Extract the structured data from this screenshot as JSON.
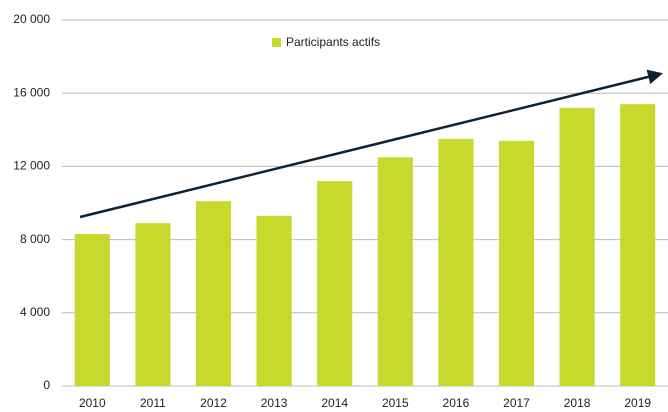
{
  "chart_data": {
    "type": "bar",
    "categories": [
      "2010",
      "2011",
      "2012",
      "2013",
      "2014",
      "2015",
      "2016",
      "2017",
      "2018",
      "2019"
    ],
    "series": [
      {
        "name": "Participants actifs",
        "color": "#c8d92e",
        "values": [
          8300,
          8900,
          10100,
          9300,
          11200,
          12500,
          13500,
          13400,
          15200,
          15400
        ]
      }
    ],
    "ylim": [
      0,
      20000
    ],
    "yticks": [
      0,
      {
        "value": 4000,
        "label": "4 000"
      },
      {
        "value": 8000,
        "label": "8 000"
      },
      {
        "value": 12000,
        "label": "12 000"
      },
      {
        "value": 16000,
        "label": "16 000"
      },
      {
        "value": 20000,
        "label": "20 000"
      }
    ],
    "grid": true,
    "legend": "top"
  }
}
